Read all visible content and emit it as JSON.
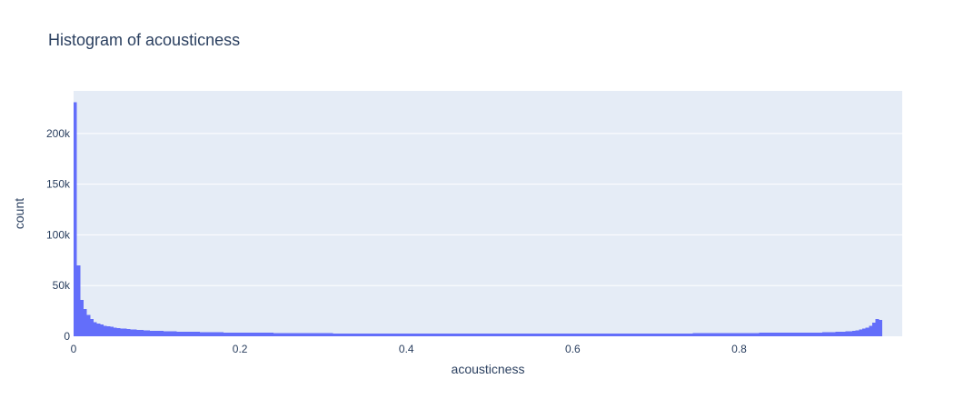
{
  "chart_data": {
    "type": "bar",
    "title": "Histogram of acousticness",
    "xlabel": "acousticness",
    "ylabel": "count",
    "xlim": [
      0,
      0.996
    ],
    "ylim": [
      0,
      242000
    ],
    "bin_width": 0.004,
    "x_ticks": [
      {
        "value": 0,
        "label": "0"
      },
      {
        "value": 0.2,
        "label": "0.2"
      },
      {
        "value": 0.4,
        "label": "0.4"
      },
      {
        "value": 0.6,
        "label": "0.6"
      },
      {
        "value": 0.8,
        "label": "0.8"
      }
    ],
    "y_ticks": [
      {
        "value": 0,
        "label": "0"
      },
      {
        "value": 50000,
        "label": "50k"
      },
      {
        "value": 100000,
        "label": "100k"
      },
      {
        "value": 150000,
        "label": "150k"
      },
      {
        "value": 200000,
        "label": "200k"
      }
    ],
    "grid": true,
    "bar_color": "#636efa",
    "plot_bg": "#e5ecf6",
    "values": [
      231000,
      70000,
      36000,
      27000,
      21000,
      17000,
      14000,
      12500,
      11500,
      10500,
      9800,
      9200,
      8700,
      8200,
      7800,
      7500,
      7200,
      6900,
      6600,
      6400,
      6200,
      6000,
      5800,
      5600,
      5400,
      5300,
      5200,
      5100,
      5000,
      4900,
      4800,
      4700,
      4600,
      4500,
      4500,
      4400,
      4300,
      4300,
      4200,
      4100,
      4100,
      4000,
      4000,
      3900,
      3900,
      3800,
      3800,
      3700,
      3700,
      3700,
      3600,
      3600,
      3600,
      3500,
      3500,
      3500,
      3400,
      3400,
      3400,
      3400,
      3300,
      3300,
      3300,
      3300,
      3200,
      3200,
      3200,
      3200,
      3100,
      3100,
      3100,
      3100,
      3000,
      3000,
      3000,
      3000,
      3000,
      3000,
      2900,
      2900,
      2900,
      2900,
      2900,
      2900,
      2900,
      2800,
      2800,
      2800,
      2800,
      2800,
      2800,
      2800,
      2800,
      2800,
      2800,
      2800,
      2800,
      2800,
      2800,
      2800,
      2800,
      2800,
      2800,
      2800,
      2800,
      2800,
      2800,
      2800,
      2800,
      2800,
      2800,
      2800,
      2800,
      2800,
      2800,
      2800,
      2800,
      2800,
      2800,
      2800,
      2800,
      2800,
      2800,
      2800,
      2800,
      2800,
      2800,
      2800,
      2800,
      2800,
      2800,
      2800,
      2800,
      2800,
      2800,
      2800,
      2800,
      2800,
      2800,
      2800,
      2800,
      2800,
      2800,
      2800,
      2800,
      2800,
      2800,
      2800,
      2800,
      2800,
      2800,
      2800,
      2800,
      2800,
      2800,
      2800,
      2800,
      2800,
      2800,
      2800,
      2800,
      2800,
      2800,
      2800,
      2800,
      2800,
      2800,
      2800,
      2800,
      2800,
      2800,
      2800,
      2800,
      2800,
      2800,
      2800,
      2800,
      2900,
      2900,
      2900,
      2900,
      2900,
      2900,
      2900,
      2900,
      2900,
      3000,
      3000,
      3000,
      3000,
      3000,
      3100,
      3100,
      3100,
      3100,
      3200,
      3200,
      3200,
      3200,
      3200,
      3300,
      3300,
      3300,
      3300,
      3300,
      3300,
      3400,
      3400,
      3400,
      3400,
      3400,
      3400,
      3500,
      3500,
      3500,
      3500,
      3600,
      3600,
      3600,
      3600,
      3700,
      3700,
      3700,
      3800,
      3800,
      3900,
      4000,
      4100,
      4200,
      4300,
      4400,
      4600,
      4800,
      5000,
      5400,
      5900,
      6600,
      7500,
      8600,
      10500,
      13500,
      17000,
      16000
    ]
  }
}
